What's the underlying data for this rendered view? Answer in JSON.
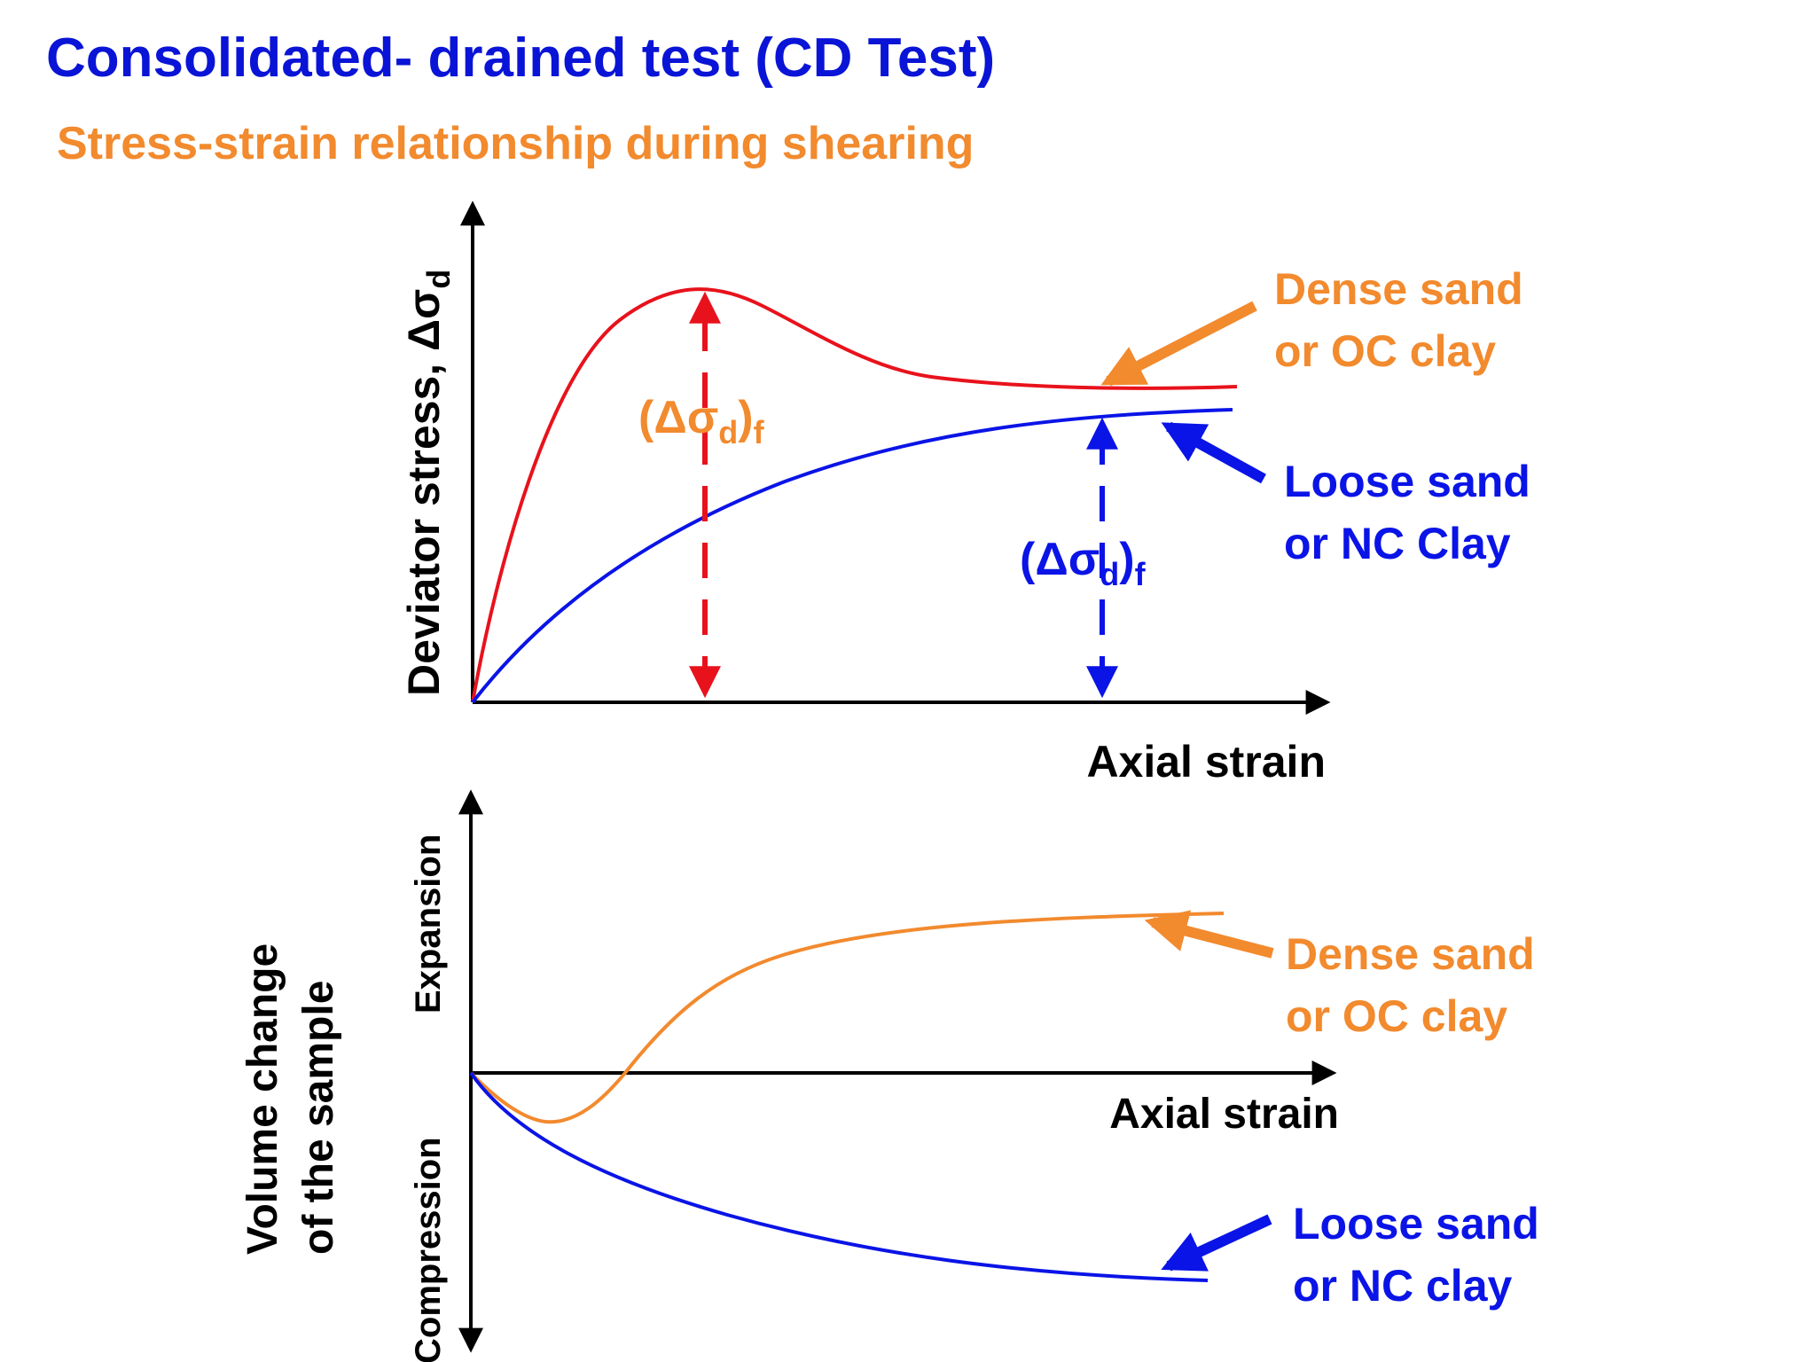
{
  "slide": {
    "title": "Consolidated- drained test (CD Test)",
    "subtitle": "Stress-strain relationship during shearing"
  },
  "colors": {
    "title": "#0a14d6",
    "subtitle": "#f28a2e",
    "dense": "#e8121c",
    "loose": "#0a14e6",
    "orange": "#f28a2e",
    "axis": "#000000"
  },
  "top_chart": {
    "ylabel_main": "Deviator stress, Δσ",
    "ylabel_sub": "d",
    "xlabel": "Axial strain",
    "dense_label_line1": "Dense sand",
    "dense_label_line2": "or OC clay",
    "loose_label_line1": "Loose sand",
    "loose_label_line2": "or NC Clay",
    "dense_failure_label": {
      "pre": "(Δσ",
      "sub": "d",
      "post": ")",
      "sub2": "f"
    },
    "loose_failure_label": {
      "pre": "(Δσ",
      "sub": "d",
      "post": ")",
      "sub2": "f"
    }
  },
  "bottom_chart": {
    "ylabel_line1": "Volume change",
    "ylabel_line2": "of the sample",
    "y_top_label": "Expansion",
    "y_bottom_label": "Compression",
    "xlabel": "Axial strain",
    "dense_label_line1": "Dense sand",
    "dense_label_line2": "or OC clay",
    "loose_label_line1": "Loose sand",
    "loose_label_line2": "or NC clay"
  }
}
